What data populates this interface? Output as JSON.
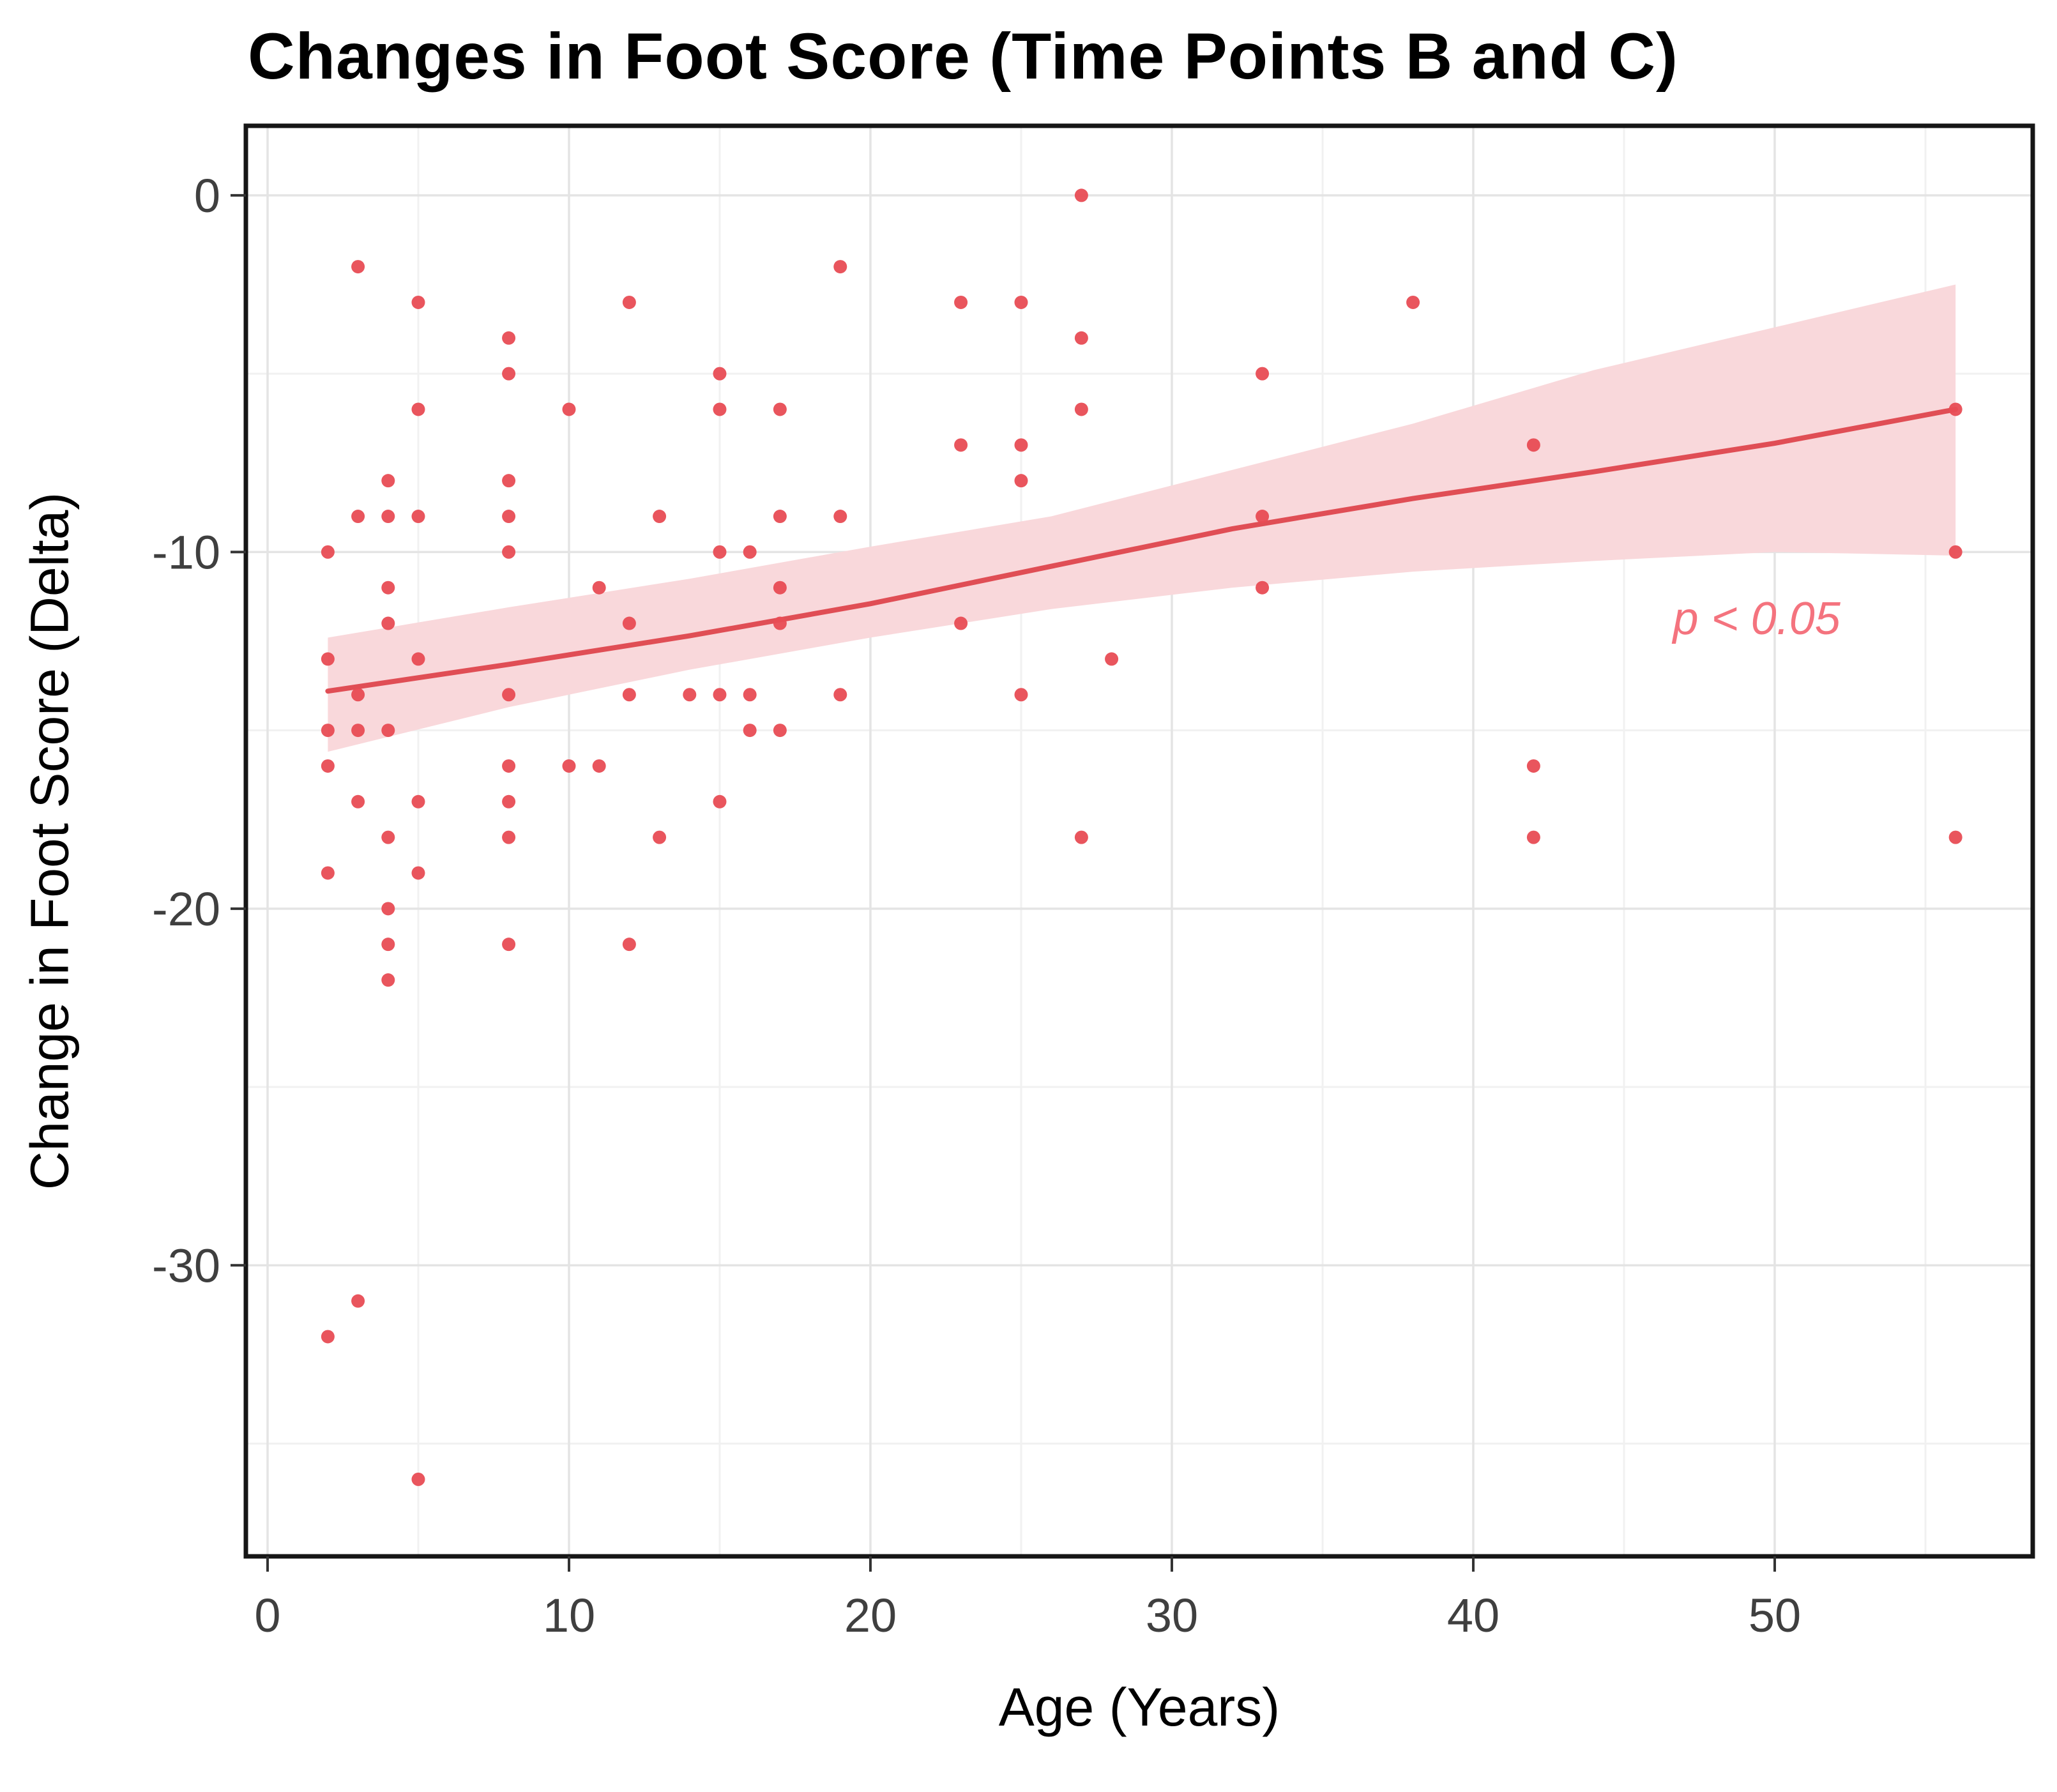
{
  "title": "Changes in Foot Score (Time Points B and C)",
  "chart_data": {
    "type": "scatter",
    "title": "Changes in Foot Score (Time Points B and C)",
    "xlabel": "Age (Years)",
    "ylabel": "Change in Foot Score (Delta)",
    "xlim": [
      -0.72,
      58.56
    ],
    "ylim": [
      -38.16,
      1.95
    ],
    "x_ticks": [
      0,
      10,
      20,
      30,
      40,
      50
    ],
    "x_minor_ticks": [
      5,
      15,
      25,
      35,
      45,
      55
    ],
    "y_ticks": [
      0,
      -10,
      -20,
      -30
    ],
    "y_minor_ticks": [
      -5,
      -15,
      -25,
      -35
    ],
    "grid": "major and minor, light gray on white, boxed black panel border",
    "legend": "none",
    "points": [
      [
        27,
        0
      ],
      [
        3,
        -2
      ],
      [
        19,
        -2
      ],
      [
        5,
        -3
      ],
      [
        12,
        -3
      ],
      [
        23,
        -3
      ],
      [
        25,
        -3
      ],
      [
        38,
        -3
      ],
      [
        8,
        -4
      ],
      [
        27,
        -4
      ],
      [
        8,
        -5
      ],
      [
        15,
        -5
      ],
      [
        33,
        -5
      ],
      [
        5,
        -6
      ],
      [
        10,
        -6
      ],
      [
        15,
        -6
      ],
      [
        17,
        -6
      ],
      [
        27,
        -6
      ],
      [
        56,
        -6
      ],
      [
        23,
        -7
      ],
      [
        25,
        -7
      ],
      [
        42,
        -7
      ],
      [
        4,
        -8
      ],
      [
        8,
        -8
      ],
      [
        25,
        -8
      ],
      [
        3,
        -9
      ],
      [
        4,
        -9
      ],
      [
        5,
        -9
      ],
      [
        8,
        -9
      ],
      [
        13,
        -9
      ],
      [
        17,
        -9
      ],
      [
        19,
        -9
      ],
      [
        33,
        -9
      ],
      [
        2,
        -10
      ],
      [
        8,
        -10
      ],
      [
        15,
        -10
      ],
      [
        16,
        -10
      ],
      [
        56,
        -10
      ],
      [
        4,
        -11
      ],
      [
        11,
        -11
      ],
      [
        17,
        -11
      ],
      [
        33,
        -11
      ],
      [
        4,
        -12
      ],
      [
        12,
        -12
      ],
      [
        17,
        -12
      ],
      [
        23,
        -12
      ],
      [
        2,
        -13
      ],
      [
        5,
        -13
      ],
      [
        28,
        -13
      ],
      [
        3,
        -14
      ],
      [
        8,
        -14
      ],
      [
        12,
        -14
      ],
      [
        14,
        -14
      ],
      [
        15,
        -14
      ],
      [
        16,
        -14
      ],
      [
        19,
        -14
      ],
      [
        25,
        -14
      ],
      [
        2,
        -15
      ],
      [
        3,
        -15
      ],
      [
        4,
        -15
      ],
      [
        16,
        -15
      ],
      [
        17,
        -15
      ],
      [
        2,
        -16
      ],
      [
        8,
        -16
      ],
      [
        10,
        -16
      ],
      [
        11,
        -16
      ],
      [
        42,
        -16
      ],
      [
        3,
        -17
      ],
      [
        5,
        -17
      ],
      [
        8,
        -17
      ],
      [
        15,
        -17
      ],
      [
        4,
        -18
      ],
      [
        8,
        -18
      ],
      [
        13,
        -18
      ],
      [
        27,
        -18
      ],
      [
        42,
        -18
      ],
      [
        56,
        -18
      ],
      [
        2,
        -19
      ],
      [
        5,
        -19
      ],
      [
        4,
        -20
      ],
      [
        4,
        -21
      ],
      [
        8,
        -21
      ],
      [
        12,
        -21
      ],
      [
        4,
        -22
      ],
      [
        3,
        -31
      ],
      [
        2,
        -32
      ],
      [
        5,
        -36
      ]
    ],
    "trend_line": [
      [
        2,
        -13.9
      ],
      [
        8,
        -13.15
      ],
      [
        14,
        -12.35
      ],
      [
        20,
        -11.45
      ],
      [
        26,
        -10.4
      ],
      [
        32,
        -9.35
      ],
      [
        38,
        -8.5
      ],
      [
        44,
        -7.75
      ],
      [
        50,
        -6.95
      ],
      [
        56,
        -6.0
      ]
    ],
    "ribbon_upper": [
      [
        2,
        -12.4
      ],
      [
        8,
        -11.55
      ],
      [
        14,
        -10.75
      ],
      [
        20,
        -9.85
      ],
      [
        26,
        -9.0
      ],
      [
        32,
        -7.7
      ],
      [
        38,
        -6.4
      ],
      [
        44,
        -4.9
      ],
      [
        50,
        -3.7
      ],
      [
        56,
        -2.5
      ]
    ],
    "ribbon_lower": [
      [
        2,
        -15.6
      ],
      [
        8,
        -14.35
      ],
      [
        14,
        -13.3
      ],
      [
        20,
        -12.4
      ],
      [
        26,
        -11.6
      ],
      [
        32,
        -11.0
      ],
      [
        38,
        -10.55
      ],
      [
        44,
        -10.25
      ],
      [
        50,
        -10.0
      ],
      [
        56,
        -10.1
      ]
    ],
    "annotation": {
      "text": "p < 0.05",
      "x": 49.4,
      "y": -12.3,
      "style": "italic"
    },
    "colors": {
      "point": "#e84c54",
      "trend_line": "#e04e55",
      "ribbon": "#f9d8db",
      "annotation": "#f4737e",
      "grid_major": "#e4e4e4",
      "grid_minor": "#f1f1f1",
      "panel_border": "#161616",
      "tick_label": "#3f3f3f",
      "tick_mark": "#333333",
      "background": "#ffffff"
    }
  }
}
